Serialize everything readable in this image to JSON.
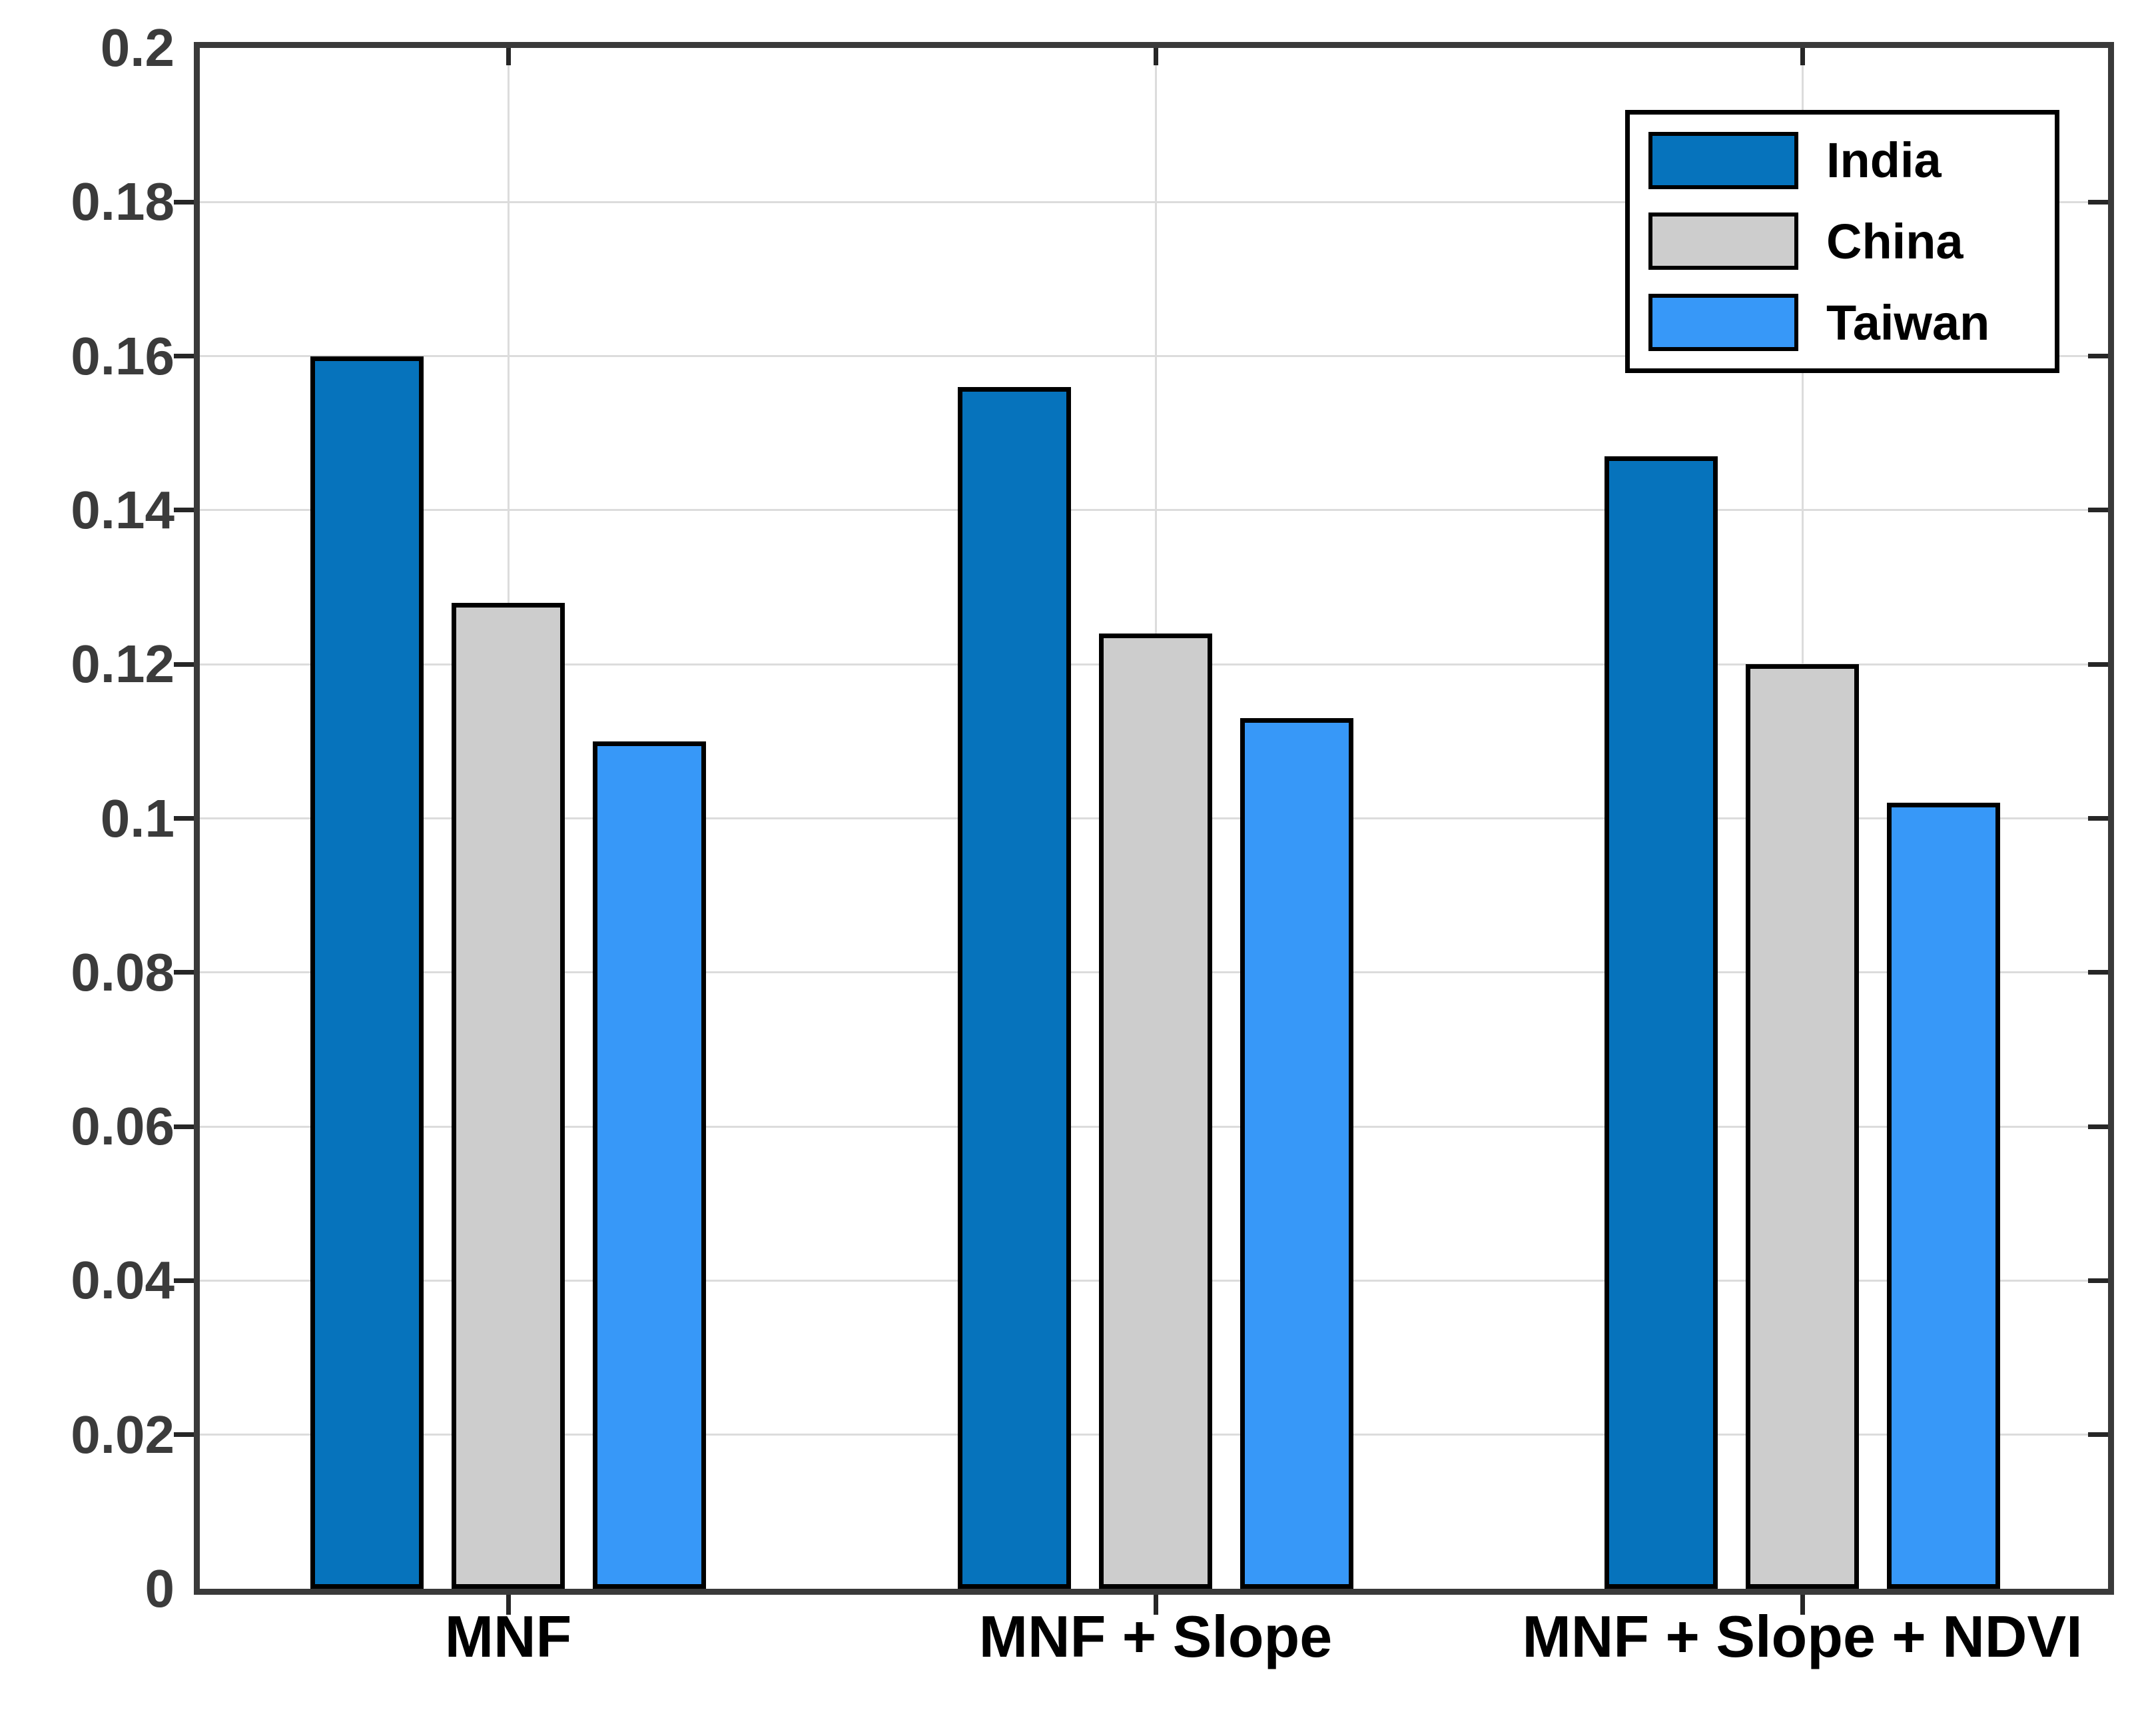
{
  "figure": {
    "background": "#ffffff"
  },
  "axes": {
    "frame_color": "#3a3a3a",
    "grid_color": "#dcdcdc",
    "tick_color": "#262626",
    "y_tick_label_color": "#3b3b3b",
    "x_label_color": "#000000",
    "grid": "on"
  },
  "chart_data": {
    "type": "bar",
    "title": "",
    "xlabel": "",
    "ylabel": "",
    "categories": [
      "MNF",
      "MNF + Slope",
      "MNF + Slope + NDVI"
    ],
    "series": [
      {
        "name": "India",
        "color": "#0673bc",
        "values": [
          0.16,
          0.156,
          0.147
        ]
      },
      {
        "name": "China",
        "color": "#cdcdcd",
        "values": [
          0.128,
          0.124,
          0.12
        ]
      },
      {
        "name": "Taiwan",
        "color": "#3798f8",
        "values": [
          0.11,
          0.113,
          0.102
        ]
      }
    ],
    "ylim": [
      0,
      0.2
    ],
    "ytick_step": 0.02,
    "ytick_labels": [
      "0",
      "0.02",
      "0.04",
      "0.06",
      "0.08",
      "0.1",
      "0.12",
      "0.14",
      "0.16",
      "0.18",
      "0.2"
    ],
    "grid": "on",
    "legend_position": "top-right"
  }
}
